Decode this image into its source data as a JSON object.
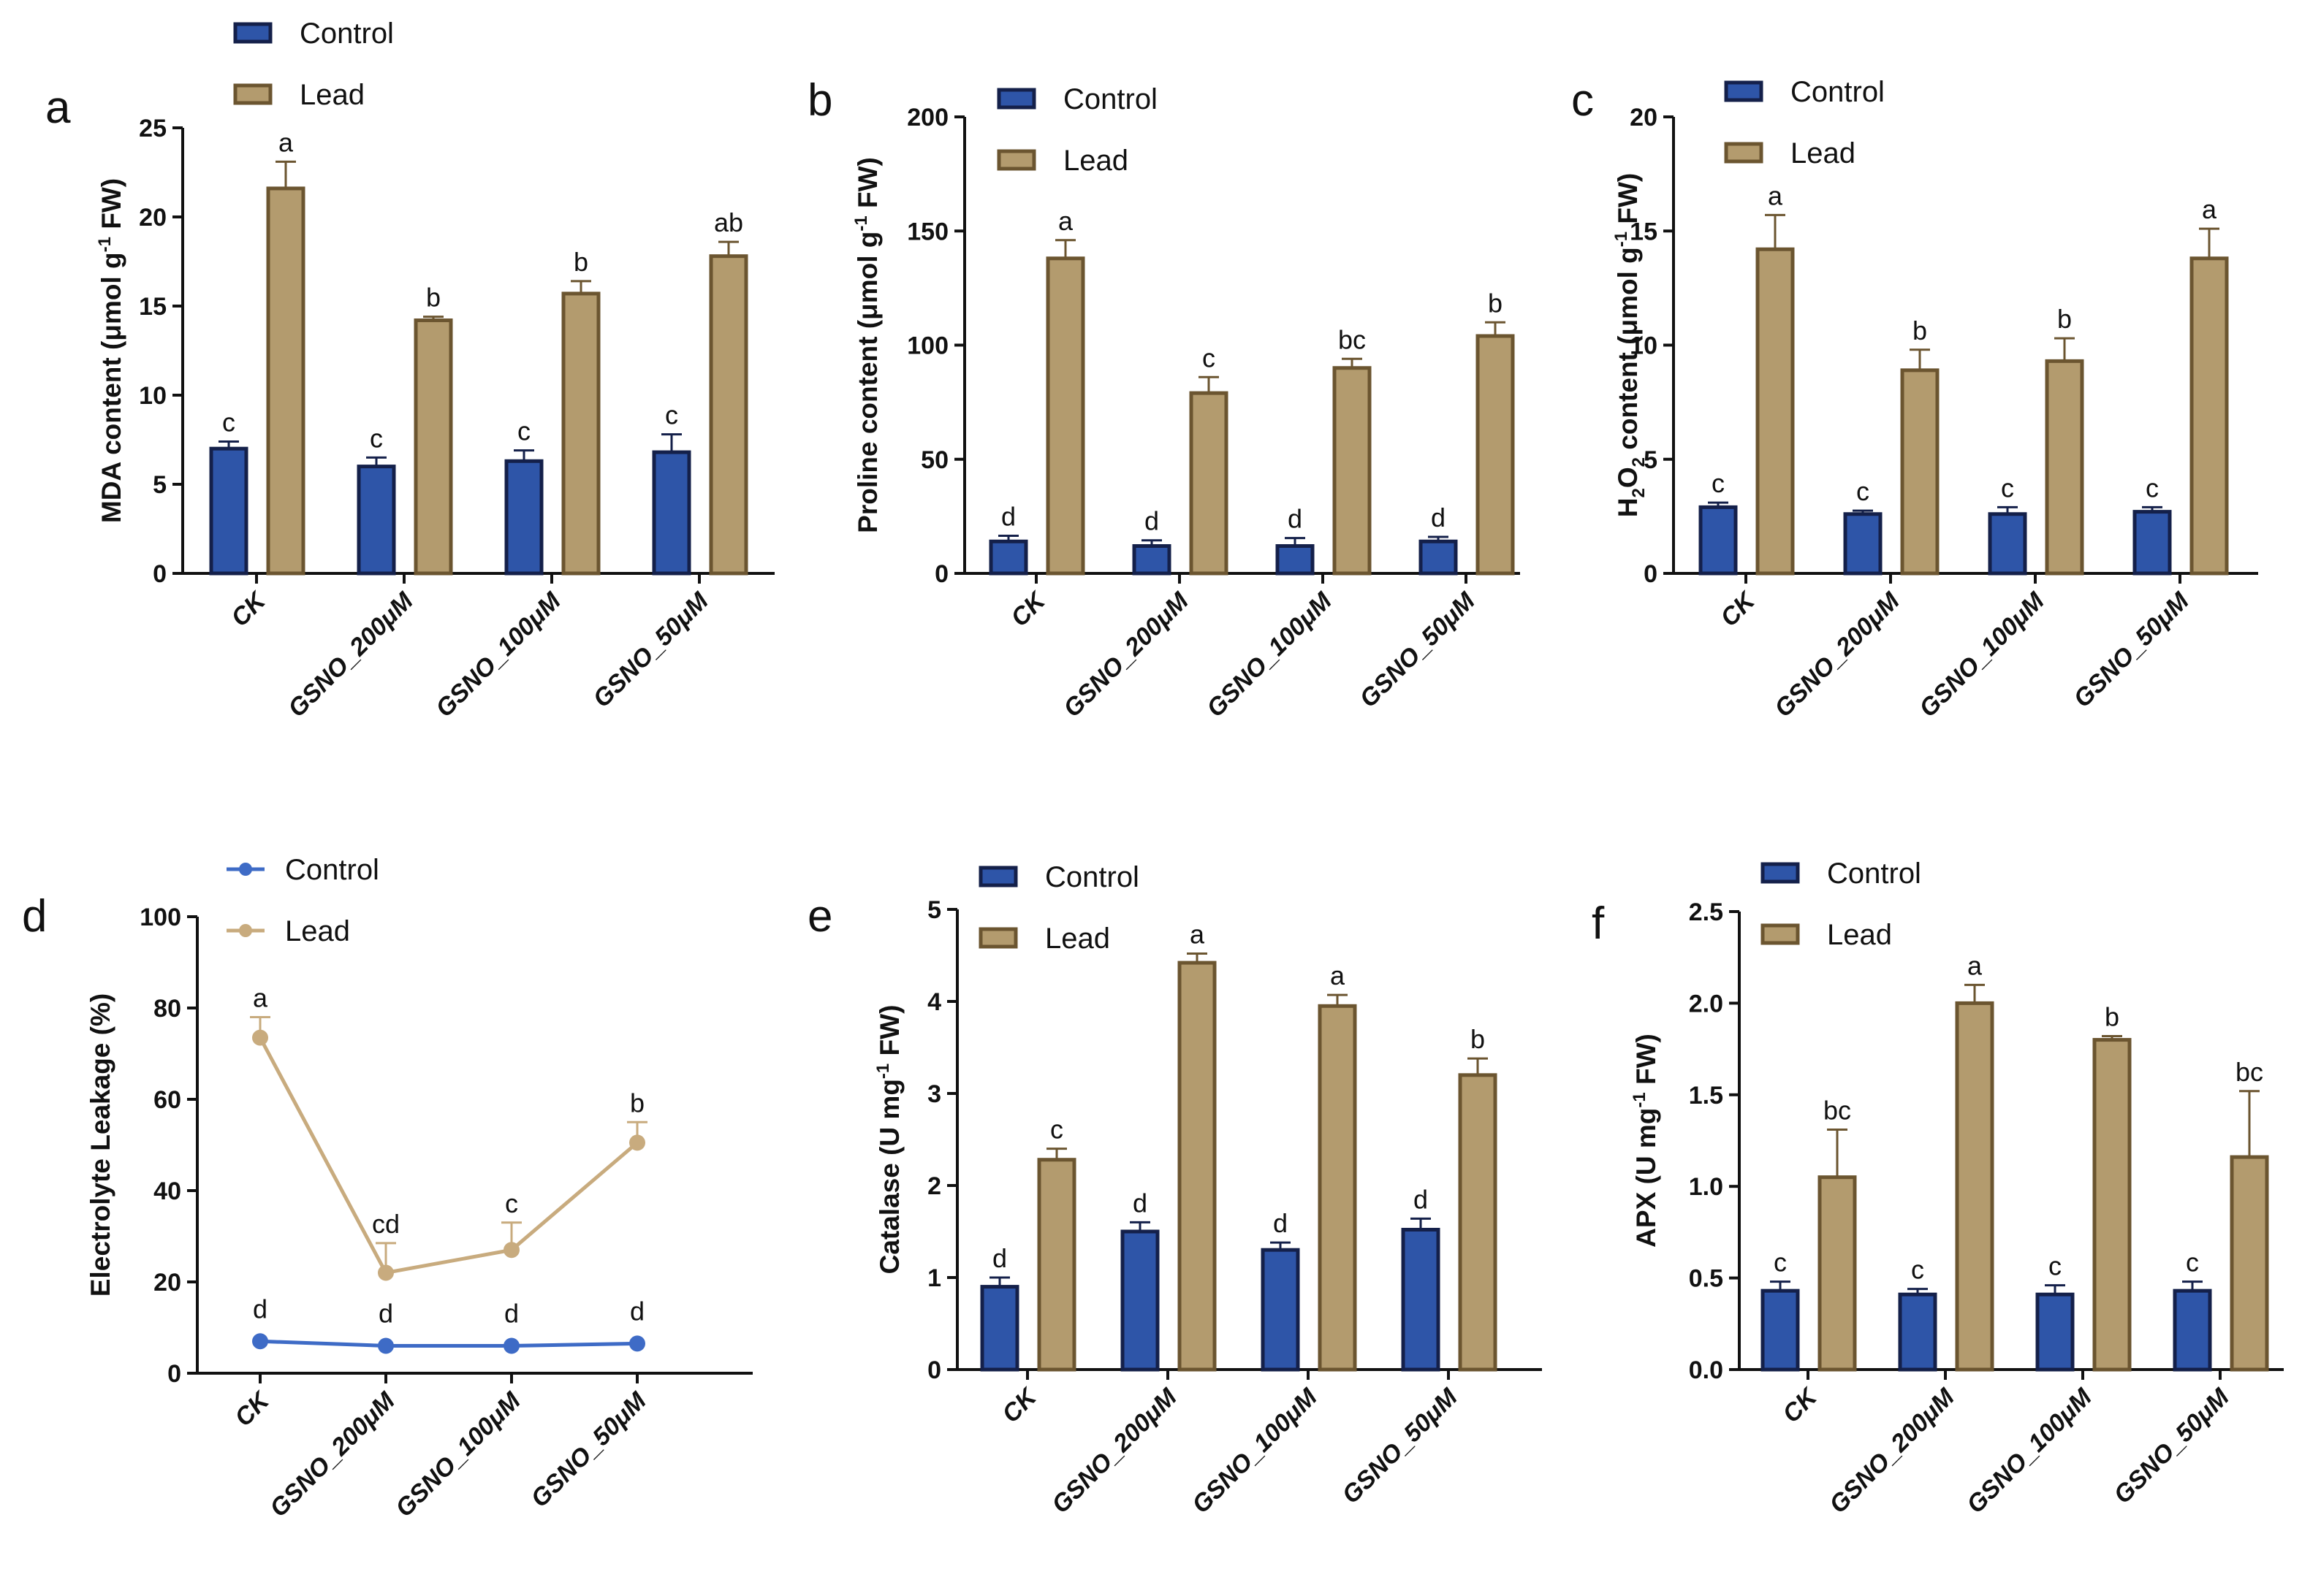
{
  "figure": {
    "categories": [
      "CK",
      "GSNO_200μM",
      "GSNO_100μM",
      "GSNO_50μM"
    ],
    "legend": [
      "Control",
      "Lead"
    ],
    "colors": {
      "control_fill": "#2e55a8",
      "control_edge": "#14204a",
      "lead_fill": "#b39b6e",
      "lead_edge": "#6b5530",
      "line_control": "#3e6bc6",
      "line_lead": "#c8ab7e",
      "axis": "#111111"
    }
  },
  "chart_data": [
    {
      "panel": "a",
      "type": "bar",
      "ylabel": "MDA content (μmol g-1 FW)",
      "ylabel_parts": [
        "MDA content (μmol g",
        "-1",
        " FW)"
      ],
      "ylim": [
        0,
        25
      ],
      "yticks": [
        "0",
        "5",
        "10",
        "15",
        "20",
        "25"
      ],
      "series": [
        {
          "name": "Control",
          "values": [
            7.0,
            6.0,
            6.3,
            6.8
          ],
          "errors": [
            0.4,
            0.5,
            0.6,
            1.0
          ],
          "labels": [
            "c",
            "c",
            "c",
            "c"
          ]
        },
        {
          "name": "Lead",
          "values": [
            21.6,
            14.2,
            15.7,
            17.8
          ],
          "errors": [
            1.5,
            0.2,
            0.7,
            0.8
          ],
          "labels": [
            "a",
            "b",
            "b",
            "ab"
          ]
        }
      ]
    },
    {
      "panel": "b",
      "type": "bar",
      "ylabel": "Proline content (μmol g-1 FW)",
      "ylabel_parts": [
        "Proline content (μmol g",
        "-1",
        " FW)"
      ],
      "ylim": [
        0,
        200
      ],
      "yticks": [
        "0",
        "50",
        "100",
        "150",
        "200"
      ],
      "series": [
        {
          "name": "Control",
          "values": [
            14,
            12,
            12,
            14
          ],
          "errors": [
            2.5,
            2.5,
            3.5,
            2
          ],
          "labels": [
            "d",
            "d",
            "d",
            "d"
          ]
        },
        {
          "name": "Lead",
          "values": [
            138,
            79,
            90,
            104
          ],
          "errors": [
            8,
            7,
            4,
            6
          ],
          "labels": [
            "a",
            "c",
            "bc",
            "b"
          ]
        }
      ]
    },
    {
      "panel": "c",
      "type": "bar",
      "ylabel": "H2O2 content (μmol g-1 FW)",
      "ylabel_parts": [
        "H",
        "2",
        "O",
        "2",
        " content (μmol g",
        "-1",
        " FW)"
      ],
      "ylim": [
        0,
        20
      ],
      "yticks": [
        "0",
        "5",
        "10",
        "15",
        "20"
      ],
      "series": [
        {
          "name": "Control",
          "values": [
            2.9,
            2.6,
            2.6,
            2.7
          ],
          "errors": [
            0.2,
            0.15,
            0.3,
            0.2
          ],
          "labels": [
            "c",
            "c",
            "c",
            "c"
          ]
        },
        {
          "name": "Lead",
          "values": [
            14.2,
            8.9,
            9.3,
            13.8
          ],
          "errors": [
            1.5,
            0.9,
            1.0,
            1.3
          ],
          "labels": [
            "a",
            "b",
            "b",
            "a"
          ]
        }
      ]
    },
    {
      "panel": "d",
      "type": "line",
      "ylabel": "Electrolyte Leakage (%)",
      "ylabel_parts": [
        "Electrolyte Leakage (%)"
      ],
      "ylim": [
        0,
        100
      ],
      "yticks": [
        "0",
        "20",
        "40",
        "60",
        "80",
        "100"
      ],
      "series": [
        {
          "name": "Control",
          "values": [
            7,
            6,
            6,
            6.5
          ],
          "errors": [
            0,
            0,
            0,
            0
          ],
          "labels": [
            "d",
            "d",
            "d",
            "d"
          ]
        },
        {
          "name": "Lead",
          "values": [
            73.5,
            22,
            27,
            50.5
          ],
          "errors": [
            4.5,
            6.5,
            6,
            4.5
          ],
          "labels": [
            "a",
            "cd",
            "c",
            "b"
          ]
        }
      ]
    },
    {
      "panel": "e",
      "type": "bar",
      "ylabel": "Catalase (U mg-1 FW)",
      "ylabel_parts": [
        "Catalase (U mg",
        "-1",
        " FW)"
      ],
      "ylim": [
        0,
        5
      ],
      "yticks": [
        "0",
        "1",
        "2",
        "3",
        "4",
        "5"
      ],
      "series": [
        {
          "name": "Control",
          "values": [
            0.9,
            1.5,
            1.3,
            1.52
          ],
          "errors": [
            0.1,
            0.1,
            0.08,
            0.12
          ],
          "labels": [
            "d",
            "d",
            "d",
            "d"
          ]
        },
        {
          "name": "Lead",
          "values": [
            2.28,
            4.42,
            3.95,
            3.2
          ],
          "errors": [
            0.12,
            0.1,
            0.12,
            0.18
          ],
          "labels": [
            "c",
            "a",
            "a",
            "b"
          ]
        }
      ]
    },
    {
      "panel": "f",
      "type": "bar",
      "ylabel": "APX (U mg-1 FW)",
      "ylabel_parts": [
        "APX (U mg",
        "-1",
        " FW)"
      ],
      "ylim": [
        0,
        2.5
      ],
      "yticks": [
        "0.0",
        "0.5",
        "1.0",
        "1.5",
        "2.0",
        "2.5"
      ],
      "series": [
        {
          "name": "Control",
          "values": [
            0.43,
            0.41,
            0.41,
            0.43
          ],
          "errors": [
            0.05,
            0.03,
            0.05,
            0.05
          ],
          "labels": [
            "c",
            "c",
            "c",
            "c"
          ]
        },
        {
          "name": "Lead",
          "values": [
            1.05,
            2.0,
            1.8,
            1.16
          ],
          "errors": [
            0.26,
            0.1,
            0.02,
            0.36
          ],
          "labels": [
            "bc",
            "a",
            "b",
            "bc"
          ]
        }
      ]
    }
  ]
}
